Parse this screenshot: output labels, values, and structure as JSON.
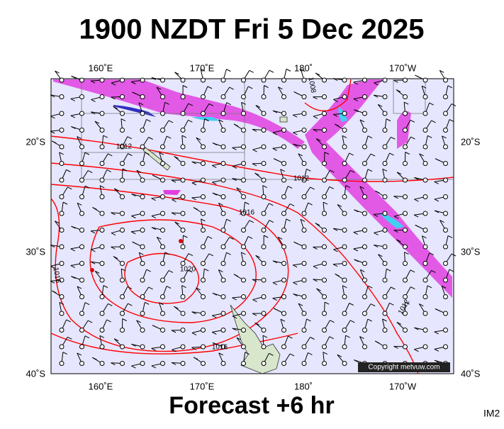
{
  "title": "1900 NZDT Fri 5 Dec 2025",
  "longitude_labels": [
    "160˚E",
    "170˚E",
    "180˚",
    "170˚W"
  ],
  "latitude_labels": [
    "20˚S",
    "30˚S",
    "40˚S"
  ],
  "isobar_labels": [
    "1012",
    "1012",
    "1016",
    "1020",
    "1016",
    "1016",
    "1012",
    "1008"
  ],
  "copyright": "Copyright metvuw.com",
  "footer": "Forecast +6 hr",
  "image_id": "IM2"
}
